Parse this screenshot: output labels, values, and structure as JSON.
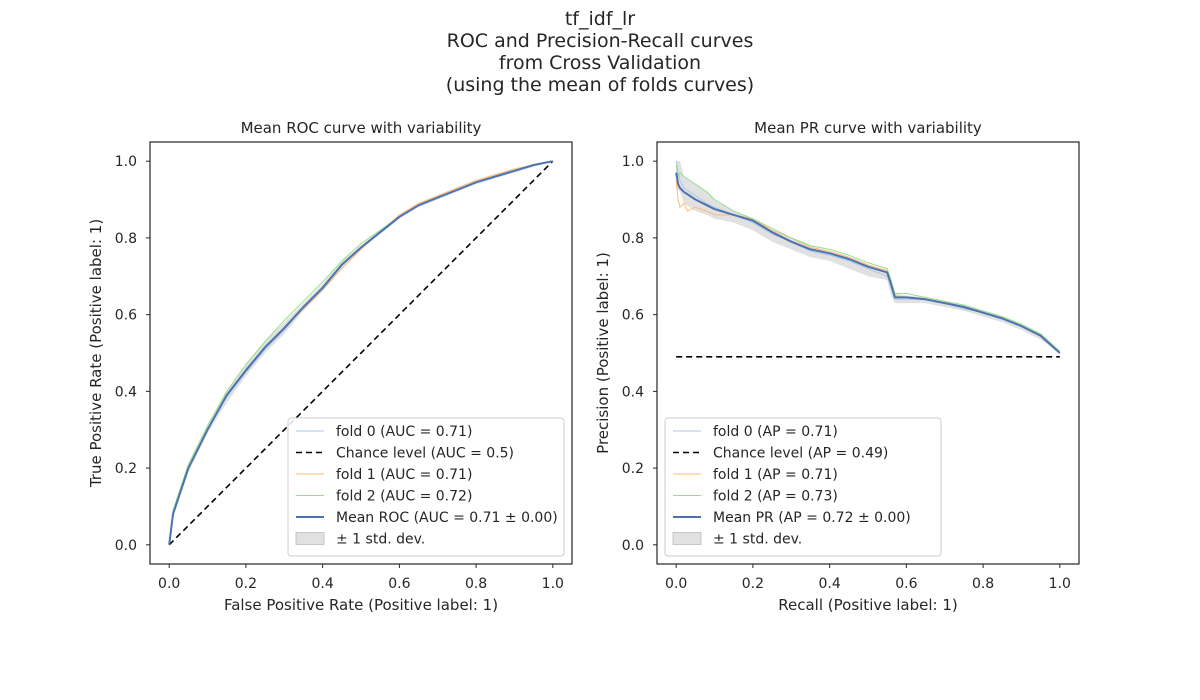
{
  "figure": {
    "title_lines": [
      "tf_idf_lr",
      "ROC and Precision-Recall curves",
      "from Cross Validation",
      "(using the mean of folds curves)"
    ]
  },
  "chart_data": [
    {
      "type": "line",
      "title": "Mean ROC curve with variability",
      "xlabel": "False Positive Rate (Positive label: 1)",
      "ylabel": "True Positive Rate (Positive label: 1)",
      "xlim": [
        -0.05,
        1.05
      ],
      "ylim": [
        -0.05,
        1.05
      ],
      "xticks": [
        0.0,
        0.2,
        0.4,
        0.6,
        0.8,
        1.0
      ],
      "yticks": [
        0.0,
        0.2,
        0.4,
        0.6,
        0.8,
        1.0
      ],
      "tick_labels": [
        "0.0",
        "0.2",
        "0.4",
        "0.6",
        "0.8",
        "1.0"
      ],
      "grid": false,
      "legend": "lower-right",
      "band_label": "± 1 std. dev.",
      "band": {
        "x": [
          0.0,
          0.01,
          0.03,
          0.05,
          0.08,
          0.1,
          0.15,
          0.2,
          0.25,
          0.3,
          0.35,
          0.4,
          0.45,
          0.5,
          0.55,
          0.6,
          0.65,
          0.7,
          0.75,
          0.8,
          0.85,
          0.9,
          0.95,
          1.0
        ],
        "lower": [
          0.0,
          0.07,
          0.13,
          0.19,
          0.25,
          0.29,
          0.37,
          0.44,
          0.5,
          0.55,
          0.61,
          0.66,
          0.72,
          0.77,
          0.81,
          0.85,
          0.88,
          0.9,
          0.92,
          0.94,
          0.955,
          0.97,
          0.985,
          1.0
        ],
        "upper": [
          0.0,
          0.09,
          0.15,
          0.21,
          0.27,
          0.31,
          0.4,
          0.47,
          0.53,
          0.58,
          0.63,
          0.68,
          0.74,
          0.78,
          0.82,
          0.86,
          0.89,
          0.91,
          0.93,
          0.95,
          0.965,
          0.98,
          0.99,
          1.0
        ]
      },
      "series": [
        {
          "name": "fold 0 (AUC = 0.71)",
          "color": "#aec7e8",
          "lw": 1,
          "x": [
            0.0,
            0.01,
            0.03,
            0.05,
            0.08,
            0.1,
            0.15,
            0.2,
            0.25,
            0.3,
            0.35,
            0.4,
            0.45,
            0.5,
            0.55,
            0.6,
            0.65,
            0.7,
            0.75,
            0.8,
            0.85,
            0.9,
            0.95,
            1.0
          ],
          "y": [
            0.0,
            0.08,
            0.14,
            0.2,
            0.26,
            0.3,
            0.385,
            0.45,
            0.51,
            0.56,
            0.62,
            0.67,
            0.73,
            0.775,
            0.815,
            0.855,
            0.885,
            0.905,
            0.925,
            0.945,
            0.96,
            0.975,
            0.99,
            1.0
          ]
        },
        {
          "name": "Chance level (AUC = 0.5)",
          "color": "#000000",
          "lw": 1.6,
          "dash": "6,4",
          "x": [
            0.0,
            1.0
          ],
          "y": [
            0.0,
            1.0
          ]
        },
        {
          "name": "fold 1 (AUC = 0.71)",
          "color": "#ffbb78",
          "lw": 1,
          "x": [
            0.0,
            0.01,
            0.03,
            0.05,
            0.08,
            0.1,
            0.15,
            0.2,
            0.25,
            0.3,
            0.35,
            0.4,
            0.45,
            0.5,
            0.55,
            0.6,
            0.65,
            0.7,
            0.75,
            0.8,
            0.85,
            0.9,
            0.95,
            1.0
          ],
          "y": [
            0.0,
            0.08,
            0.14,
            0.2,
            0.26,
            0.3,
            0.39,
            0.455,
            0.515,
            0.565,
            0.615,
            0.665,
            0.72,
            0.77,
            0.815,
            0.86,
            0.89,
            0.91,
            0.93,
            0.95,
            0.965,
            0.98,
            0.99,
            1.0
          ]
        },
        {
          "name": "fold 2 (AUC = 0.72)",
          "color": "#98df8a",
          "lw": 1,
          "x": [
            0.0,
            0.01,
            0.03,
            0.05,
            0.08,
            0.1,
            0.15,
            0.2,
            0.25,
            0.3,
            0.35,
            0.4,
            0.45,
            0.5,
            0.55,
            0.6,
            0.65,
            0.7,
            0.75,
            0.8,
            0.85,
            0.9,
            0.95,
            1.0
          ],
          "y": [
            0.0,
            0.09,
            0.15,
            0.21,
            0.27,
            0.31,
            0.4,
            0.47,
            0.53,
            0.585,
            0.635,
            0.685,
            0.74,
            0.785,
            0.82,
            0.855,
            0.885,
            0.905,
            0.925,
            0.945,
            0.96,
            0.975,
            0.99,
            1.0
          ]
        },
        {
          "name": "Mean ROC (AUC = 0.71 ± 0.00)",
          "color": "#4c72b0",
          "lw": 2,
          "x": [
            0.0,
            0.01,
            0.03,
            0.05,
            0.08,
            0.1,
            0.15,
            0.2,
            0.25,
            0.3,
            0.35,
            0.4,
            0.45,
            0.5,
            0.55,
            0.6,
            0.65,
            0.7,
            0.75,
            0.8,
            0.85,
            0.9,
            0.95,
            1.0
          ],
          "y": [
            0.0,
            0.08,
            0.14,
            0.2,
            0.26,
            0.3,
            0.39,
            0.455,
            0.515,
            0.565,
            0.62,
            0.67,
            0.73,
            0.775,
            0.815,
            0.855,
            0.885,
            0.905,
            0.925,
            0.945,
            0.96,
            0.975,
            0.99,
            1.0
          ]
        }
      ]
    },
    {
      "type": "line",
      "title": "Mean PR curve with variability",
      "xlabel": "Recall (Positive label: 1)",
      "ylabel": "Precision (Positive label: 1)",
      "xlim": [
        -0.05,
        1.05
      ],
      "ylim": [
        -0.05,
        1.05
      ],
      "xticks": [
        0.0,
        0.2,
        0.4,
        0.6,
        0.8,
        1.0
      ],
      "yticks": [
        0.0,
        0.2,
        0.4,
        0.6,
        0.8,
        1.0
      ],
      "tick_labels": [
        "0.0",
        "0.2",
        "0.4",
        "0.6",
        "0.8",
        "1.0"
      ],
      "grid": false,
      "legend": "lower-left",
      "band_label": "± 1 std. dev.",
      "band": {
        "x": [
          0.0,
          0.01,
          0.02,
          0.05,
          0.08,
          0.1,
          0.15,
          0.2,
          0.25,
          0.3,
          0.35,
          0.4,
          0.45,
          0.5,
          0.55,
          0.56,
          0.57,
          0.6,
          0.65,
          0.7,
          0.75,
          0.8,
          0.85,
          0.9,
          0.95,
          1.0
        ],
        "lower": [
          0.93,
          0.92,
          0.89,
          0.87,
          0.86,
          0.85,
          0.84,
          0.82,
          0.79,
          0.77,
          0.75,
          0.74,
          0.72,
          0.7,
          0.69,
          0.65,
          0.63,
          0.63,
          0.63,
          0.62,
          0.61,
          0.595,
          0.58,
          0.56,
          0.535,
          0.5
        ],
        "upper": [
          1.0,
          1.0,
          0.96,
          0.94,
          0.92,
          0.9,
          0.87,
          0.85,
          0.82,
          0.8,
          0.78,
          0.765,
          0.75,
          0.73,
          0.715,
          0.69,
          0.655,
          0.65,
          0.645,
          0.635,
          0.625,
          0.61,
          0.595,
          0.575,
          0.55,
          0.505
        ]
      },
      "series": [
        {
          "name": "fold 0 (AP = 0.71)",
          "color": "#aec7e8",
          "lw": 1,
          "x": [
            0.0,
            0.005,
            0.01,
            0.02,
            0.05,
            0.08,
            0.1,
            0.15,
            0.2,
            0.25,
            0.3,
            0.35,
            0.4,
            0.45,
            0.5,
            0.55,
            0.56,
            0.57,
            0.6,
            0.65,
            0.7,
            0.75,
            0.8,
            0.85,
            0.9,
            0.95,
            1.0
          ],
          "y": [
            1.0,
            0.97,
            0.95,
            0.93,
            0.91,
            0.89,
            0.88,
            0.86,
            0.84,
            0.81,
            0.79,
            0.765,
            0.755,
            0.74,
            0.72,
            0.7,
            0.67,
            0.64,
            0.64,
            0.64,
            0.63,
            0.615,
            0.605,
            0.59,
            0.57,
            0.545,
            0.5
          ]
        },
        {
          "name": "Chance level (AP = 0.49)",
          "color": "#000000",
          "lw": 1.6,
          "dash": "6,4",
          "x": [
            0.0,
            1.0
          ],
          "y": [
            0.49,
            0.49
          ]
        },
        {
          "name": "fold 1 (AP = 0.71)",
          "color": "#ffbb78",
          "lw": 1,
          "x": [
            0.0,
            0.005,
            0.01,
            0.02,
            0.03,
            0.05,
            0.08,
            0.1,
            0.15,
            0.2,
            0.25,
            0.3,
            0.35,
            0.4,
            0.45,
            0.5,
            0.55,
            0.56,
            0.57,
            0.6,
            0.65,
            0.7,
            0.75,
            0.8,
            0.85,
            0.9,
            0.95,
            1.0
          ],
          "y": [
            0.95,
            0.9,
            0.88,
            0.89,
            0.87,
            0.88,
            0.87,
            0.86,
            0.86,
            0.85,
            0.82,
            0.8,
            0.775,
            0.765,
            0.75,
            0.73,
            0.715,
            0.69,
            0.65,
            0.645,
            0.64,
            0.63,
            0.62,
            0.605,
            0.59,
            0.57,
            0.545,
            0.5
          ]
        },
        {
          "name": "fold 2 (AP = 0.73)",
          "color": "#98df8a",
          "lw": 1,
          "x": [
            0.0,
            0.005,
            0.01,
            0.02,
            0.05,
            0.08,
            0.1,
            0.15,
            0.2,
            0.25,
            0.3,
            0.35,
            0.4,
            0.45,
            0.5,
            0.55,
            0.56,
            0.57,
            0.6,
            0.65,
            0.7,
            0.75,
            0.8,
            0.85,
            0.9,
            0.95,
            1.0
          ],
          "y": [
            0.99,
            0.96,
            0.97,
            0.96,
            0.94,
            0.92,
            0.9,
            0.87,
            0.85,
            0.825,
            0.8,
            0.78,
            0.77,
            0.755,
            0.735,
            0.72,
            0.69,
            0.655,
            0.655,
            0.645,
            0.635,
            0.625,
            0.61,
            0.595,
            0.575,
            0.55,
            0.505
          ]
        },
        {
          "name": "Mean PR (AP = 0.72 ± 0.00)",
          "color": "#4c72b0",
          "lw": 2,
          "x": [
            0.0,
            0.005,
            0.01,
            0.02,
            0.05,
            0.08,
            0.1,
            0.15,
            0.2,
            0.25,
            0.3,
            0.35,
            0.4,
            0.45,
            0.5,
            0.55,
            0.56,
            0.57,
            0.6,
            0.65,
            0.7,
            0.75,
            0.8,
            0.85,
            0.9,
            0.95,
            1.0
          ],
          "y": [
            0.97,
            0.94,
            0.93,
            0.92,
            0.9,
            0.885,
            0.875,
            0.86,
            0.845,
            0.815,
            0.79,
            0.77,
            0.76,
            0.745,
            0.725,
            0.71,
            0.68,
            0.645,
            0.645,
            0.64,
            0.63,
            0.62,
            0.605,
            0.59,
            0.57,
            0.545,
            0.5
          ]
        }
      ]
    }
  ]
}
